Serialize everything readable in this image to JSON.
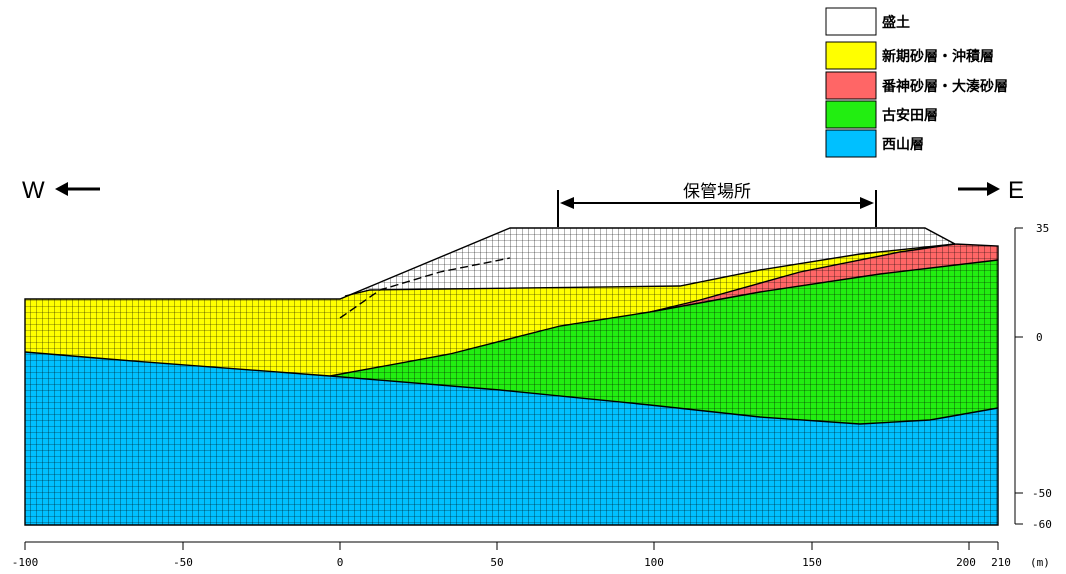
{
  "legend": [
    {
      "label": "盛土",
      "color": "#ffffff"
    },
    {
      "label": "新期砂層・沖積層",
      "color": "#ffff00"
    },
    {
      "label": "番神砂層・大湊砂層",
      "color": "#ff6666"
    },
    {
      "label": "古安田層",
      "color": "#22ee11"
    },
    {
      "label": "西山層",
      "color": "#00c0ff"
    }
  ],
  "direction": {
    "west": "W",
    "east": "E"
  },
  "storage_area": {
    "label": "保管場所",
    "x_from": 70,
    "x_to": 171
  },
  "x_axis": {
    "ticks": [
      {
        "value": -100,
        "label": "-100"
      },
      {
        "value": -50,
        "label": "-50"
      },
      {
        "value": 0,
        "label": "0"
      },
      {
        "value": 50,
        "label": "50"
      },
      {
        "value": 100,
        "label": "100"
      },
      {
        "value": 150,
        "label": "150"
      },
      {
        "value": 200,
        "label": "200"
      },
      {
        "value": 210,
        "label": "210"
      }
    ],
    "unit": "(m)",
    "range": [
      -100,
      210
    ]
  },
  "y_axis": {
    "ticks": [
      {
        "value": 35,
        "label": "35"
      },
      {
        "value": 0,
        "label": "0"
      },
      {
        "value": -50,
        "label": "-50"
      },
      {
        "value": -60,
        "label": "-60"
      }
    ]
  },
  "mesh": {
    "line_color": "#000000"
  }
}
